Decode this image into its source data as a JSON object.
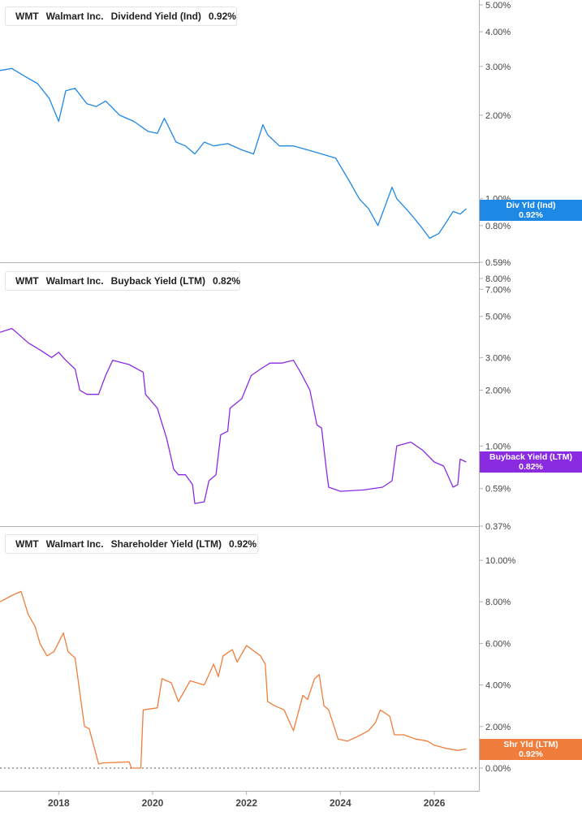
{
  "colors": {
    "dividend": "#1e88e5",
    "buyback": "#8a2be2",
    "shareholder": "#f07d3c",
    "grid": "#c8c8c8",
    "axis_text": "#444444"
  },
  "x_axis": {
    "tick_labels": [
      "2018",
      "2020",
      "2022",
      "2024",
      "2026"
    ],
    "tick_values": [
      2018,
      2020,
      2022,
      2024,
      2026
    ],
    "range": [
      2016.75,
      2026.95
    ]
  },
  "panels": [
    {
      "ticker": "WMT",
      "company": "Walmart Inc.",
      "metric": "Dividend Yield (Ind)",
      "value": "0.92%",
      "flag_label": "Div Yld (Ind)",
      "flag_value": "0.92%"
    },
    {
      "ticker": "WMT",
      "company": "Walmart Inc.",
      "metric": "Buyback Yield (LTM)",
      "value": "0.82%",
      "flag_label": "Buyback Yield (LTM)",
      "flag_value": "0.82%"
    },
    {
      "ticker": "WMT",
      "company": "Walmart Inc.",
      "metric": "Shareholder Yield (LTM)",
      "value": "0.92%",
      "flag_label": "Shr Yld (LTM)",
      "flag_value": "0.92%"
    }
  ],
  "chart_data": [
    {
      "type": "line",
      "title": "WMT Walmart Inc. Dividend Yield (Ind) 0.92%",
      "scale": "log",
      "ylim": [
        0.59,
        5.0
      ],
      "y_ticks": [
        5.0,
        4.0,
        3.0,
        2.0,
        1.0,
        0.8,
        0.59
      ],
      "y_tick_labels": [
        "5.00%",
        "4.00%",
        "3.00%",
        "2.00%",
        "1.00%",
        "0.80%",
        "0.59%"
      ],
      "series": [
        {
          "name": "Dividend Yield (Ind)",
          "x": [
            2016.75,
            2017.0,
            2017.3,
            2017.55,
            2017.8,
            2018.0,
            2018.15,
            2018.35,
            2018.6,
            2018.8,
            2019.0,
            2019.3,
            2019.6,
            2019.9,
            2020.1,
            2020.25,
            2020.5,
            2020.7,
            2020.9,
            2021.1,
            2021.3,
            2021.6,
            2021.9,
            2022.15,
            2022.35,
            2022.45,
            2022.7,
            2023.0,
            2023.3,
            2023.6,
            2023.9,
            2024.2,
            2024.4,
            2024.6,
            2024.8,
            2025.1,
            2025.2,
            2025.45,
            2025.7,
            2025.9,
            2026.1,
            2026.25,
            2026.4,
            2026.55,
            2026.68
          ],
          "values": [
            2.9,
            2.95,
            2.75,
            2.6,
            2.3,
            1.9,
            2.45,
            2.5,
            2.2,
            2.15,
            2.25,
            2.0,
            1.9,
            1.75,
            1.72,
            1.95,
            1.6,
            1.55,
            1.45,
            1.6,
            1.55,
            1.58,
            1.5,
            1.45,
            1.85,
            1.7,
            1.55,
            1.55,
            1.5,
            1.45,
            1.4,
            1.15,
            1.0,
            0.92,
            0.8,
            1.1,
            1.0,
            0.9,
            0.8,
            0.72,
            0.75,
            0.82,
            0.9,
            0.88,
            0.92
          ]
        }
      ]
    },
    {
      "type": "line",
      "title": "WMT Walmart Inc. Buyback Yield (LTM) 0.82%",
      "scale": "log",
      "ylim": [
        0.37,
        8.0
      ],
      "y_ticks": [
        8.0,
        7.0,
        5.0,
        3.0,
        2.0,
        1.0,
        0.59,
        0.37
      ],
      "y_tick_labels": [
        "8.00%",
        "7.00%",
        "5.00%",
        "3.00%",
        "2.00%",
        "1.00%",
        "0.59%",
        "0.37%"
      ],
      "series": [
        {
          "name": "Buyback Yield (LTM)",
          "x": [
            2016.75,
            2017.0,
            2017.1,
            2017.35,
            2017.6,
            2017.85,
            2018.0,
            2018.15,
            2018.35,
            2018.45,
            2018.6,
            2018.85,
            2019.0,
            2019.15,
            2019.5,
            2019.8,
            2019.85,
            2020.1,
            2020.3,
            2020.45,
            2020.55,
            2020.7,
            2020.85,
            2020.9,
            2021.1,
            2021.2,
            2021.35,
            2021.45,
            2021.6,
            2021.65,
            2021.9,
            2022.1,
            2022.3,
            2022.5,
            2022.75,
            2023.0,
            2023.15,
            2023.35,
            2023.5,
            2023.6,
            2023.7,
            2023.75,
            2024.0,
            2024.5,
            2024.9,
            2025.1,
            2025.2,
            2025.5,
            2025.75,
            2026.0,
            2026.2,
            2026.4,
            2026.5,
            2026.55,
            2026.68
          ],
          "values": [
            4.1,
            4.3,
            4.1,
            3.6,
            3.3,
            3.0,
            3.2,
            2.9,
            2.6,
            2.0,
            1.9,
            1.9,
            2.4,
            2.9,
            2.75,
            2.5,
            1.9,
            1.6,
            1.1,
            0.75,
            0.7,
            0.7,
            0.62,
            0.49,
            0.5,
            0.65,
            0.7,
            1.15,
            1.2,
            1.6,
            1.8,
            2.4,
            2.6,
            2.8,
            2.8,
            2.9,
            2.5,
            2.0,
            1.3,
            1.25,
            0.75,
            0.6,
            0.57,
            0.58,
            0.6,
            0.65,
            1.0,
            1.05,
            0.95,
            0.82,
            0.78,
            0.6,
            0.62,
            0.85,
            0.82
          ]
        }
      ]
    },
    {
      "type": "line",
      "title": "WMT Walmart Inc. Shareholder Yield (LTM) 0.92%",
      "scale": "linear",
      "ylim": [
        0.0,
        10.0
      ],
      "y_ticks": [
        10.0,
        8.0,
        6.0,
        4.0,
        2.0,
        0.0
      ],
      "y_tick_labels": [
        "10.00%",
        "8.00%",
        "6.00%",
        "4.00%",
        "2.00%",
        "0.00%"
      ],
      "series": [
        {
          "name": "Shareholder Yield (LTM)",
          "x": [
            2016.75,
            2017.0,
            2017.2,
            2017.35,
            2017.5,
            2017.6,
            2017.75,
            2017.9,
            2018.1,
            2018.2,
            2018.35,
            2018.55,
            2018.65,
            2018.85,
            2018.95,
            2019.5,
            2019.55,
            2019.75,
            2019.8,
            2020.1,
            2020.2,
            2020.4,
            2020.55,
            2020.8,
            2021.1,
            2021.3,
            2021.4,
            2021.5,
            2021.7,
            2021.8,
            2022.0,
            2022.3,
            2022.4,
            2022.45,
            2022.6,
            2022.8,
            2023.0,
            2023.2,
            2023.3,
            2023.45,
            2023.55,
            2023.65,
            2023.75,
            2023.95,
            2024.15,
            2024.35,
            2024.6,
            2024.75,
            2024.85,
            2025.05,
            2025.15,
            2025.35,
            2025.6,
            2025.85,
            2026.0,
            2026.25,
            2026.5,
            2026.68
          ],
          "values": [
            8.0,
            8.3,
            8.5,
            7.4,
            6.8,
            6.0,
            5.4,
            5.6,
            6.5,
            5.6,
            5.3,
            2.0,
            1.9,
            0.2,
            0.25,
            0.3,
            0.0,
            0.0,
            2.8,
            2.9,
            4.3,
            4.1,
            3.2,
            4.2,
            4.0,
            5.0,
            4.4,
            5.4,
            5.7,
            5.1,
            5.9,
            5.4,
            5.0,
            3.2,
            3.0,
            2.8,
            1.8,
            3.5,
            3.3,
            4.3,
            4.5,
            3.0,
            2.8,
            1.4,
            1.3,
            1.5,
            1.8,
            2.2,
            2.8,
            2.5,
            1.6,
            1.6,
            1.4,
            1.3,
            1.1,
            0.95,
            0.85,
            0.92
          ]
        }
      ]
    }
  ]
}
